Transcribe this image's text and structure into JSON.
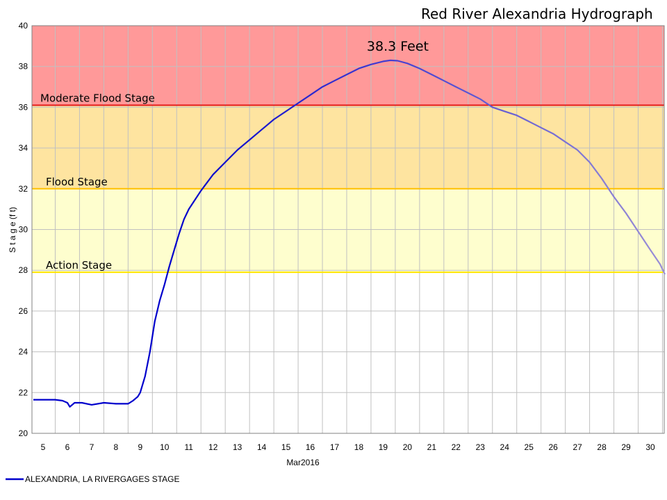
{
  "chart_data": {
    "type": "line",
    "title": "Red River Alexandria Hydrograph",
    "ylabel": "S t a g e  (f t)",
    "xlabel": "Mar2016",
    "ylim": [
      20,
      40
    ],
    "xlim": [
      4.6,
      30.7
    ],
    "y_ticks": [
      "20",
      "22",
      "24",
      "26",
      "28",
      "30",
      "32",
      "34",
      "36",
      "38",
      "40"
    ],
    "x_ticks": [
      "5",
      "6",
      "7",
      "8",
      "9",
      "10",
      "11",
      "12",
      "13",
      "14",
      "15",
      "16",
      "17",
      "18",
      "19",
      "20",
      "21",
      "22",
      "23",
      "24",
      "25",
      "26",
      "27",
      "28",
      "29",
      "30"
    ],
    "grid": true,
    "zones": [
      {
        "label": "Moderate Flood Stage",
        "from": 36.1,
        "to": 40,
        "fill": "#ff9999",
        "line": "#e31a1c"
      },
      {
        "label": "Flood Stage",
        "from": 32,
        "to": 36.1,
        "fill": "#fee4a0",
        "line": "#ffc000"
      },
      {
        "label": "Action Stage",
        "from": 27.9,
        "to": 32,
        "fill": "#fefece",
        "line": "#ffe600"
      }
    ],
    "annotation": {
      "text": "38.3 Feet",
      "x": 19.2,
      "y": 38.3
    },
    "legend": {
      "position": "bottom-left",
      "label": "ALEXANDRIA, LA RIVERGAGES STAGE"
    },
    "series": [
      {
        "name": "ALEXANDRIA, LA RIVERGAGES STAGE",
        "color": "#0000cc",
        "color_end": "#9b8fd6",
        "x": [
          4.6,
          5.0,
          5.5,
          5.8,
          6.0,
          6.1,
          6.3,
          6.6,
          7.0,
          7.5,
          8.0,
          8.5,
          8.7,
          8.9,
          9.0,
          9.2,
          9.4,
          9.6,
          9.8,
          10.0,
          10.2,
          10.4,
          10.6,
          10.8,
          11.0,
          11.5,
          12.0,
          12.5,
          13.0,
          13.5,
          14.0,
          14.5,
          15.0,
          15.5,
          16.0,
          16.5,
          17.0,
          17.5,
          18.0,
          18.5,
          19.0,
          19.3,
          19.6,
          20.0,
          20.5,
          21.0,
          21.5,
          22.0,
          22.5,
          23.0,
          23.5,
          24.0,
          24.5,
          25.0,
          25.5,
          26.0,
          26.5,
          27.0,
          27.5,
          28.0,
          28.5,
          29.0,
          29.5,
          30.0,
          30.4,
          30.6
        ],
        "y": [
          21.65,
          21.65,
          21.65,
          21.6,
          21.5,
          21.3,
          21.5,
          21.5,
          21.4,
          21.5,
          21.45,
          21.45,
          21.6,
          21.8,
          22.0,
          22.8,
          24.0,
          25.5,
          26.5,
          27.3,
          28.2,
          29.0,
          29.8,
          30.5,
          31.0,
          31.9,
          32.7,
          33.3,
          33.9,
          34.4,
          34.9,
          35.4,
          35.8,
          36.2,
          36.6,
          37.0,
          37.3,
          37.6,
          37.9,
          38.1,
          38.25,
          38.3,
          38.28,
          38.15,
          37.9,
          37.6,
          37.3,
          37.0,
          36.7,
          36.4,
          36.0,
          35.8,
          35.6,
          35.3,
          35.0,
          34.7,
          34.3,
          33.9,
          33.3,
          32.5,
          31.6,
          30.8,
          29.9,
          29.0,
          28.3,
          27.8
        ]
      }
    ]
  }
}
